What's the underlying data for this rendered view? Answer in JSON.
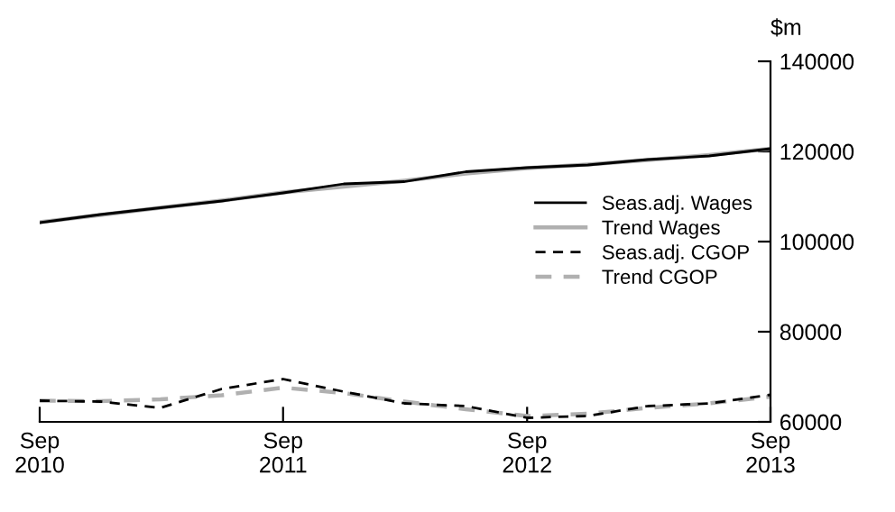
{
  "chart_data": {
    "type": "line",
    "ylabel": "$m",
    "x": [
      "2010-09",
      "2010-12",
      "2011-03",
      "2011-06",
      "2011-09",
      "2011-12",
      "2012-03",
      "2012-06",
      "2012-09",
      "2012-12",
      "2013-03",
      "2013-06",
      "2013-09"
    ],
    "series": [
      {
        "name": "Seas.adj. Wages",
        "color": "#000000",
        "line_style": "solid",
        "values": [
          104200,
          106000,
          107500,
          109000,
          110800,
          112800,
          113300,
          115500,
          116400,
          117000,
          118200,
          119000,
          120600
        ]
      },
      {
        "name": "Trend Wages",
        "color": "#b0b0b0",
        "line_style": "solid",
        "values": [
          104300,
          105900,
          107500,
          109100,
          110900,
          112200,
          113500,
          115100,
          116300,
          117100,
          118100,
          119200,
          120600
        ]
      },
      {
        "name": "Seas.adj. CGOP",
        "color": "#000000",
        "line_style": "dashed",
        "values": [
          64700,
          64500,
          63100,
          67300,
          69500,
          66700,
          64100,
          63500,
          60900,
          61300,
          63500,
          64100,
          66000
        ]
      },
      {
        "name": "Trend CGOP",
        "color": "#b0b0b0",
        "line_style": "dashed",
        "values": [
          64700,
          64600,
          65000,
          65900,
          67600,
          66400,
          64500,
          62800,
          61300,
          61800,
          63100,
          64100,
          65600
        ]
      }
    ],
    "xlim": [
      "2010-09",
      "2013-09"
    ],
    "xticks": [
      {
        "value": "2010-09",
        "label": "Sep\n2010"
      },
      {
        "value": "2011-09",
        "label": "Sep\n2011"
      },
      {
        "value": "2012-09",
        "label": "Sep\n2012"
      },
      {
        "value": "2013-09",
        "label": "Sep\n2013"
      }
    ],
    "ylim": [
      60000,
      140000
    ],
    "yticks": [
      60000,
      80000,
      100000,
      120000,
      140000
    ],
    "grid": false,
    "legend": "right"
  }
}
